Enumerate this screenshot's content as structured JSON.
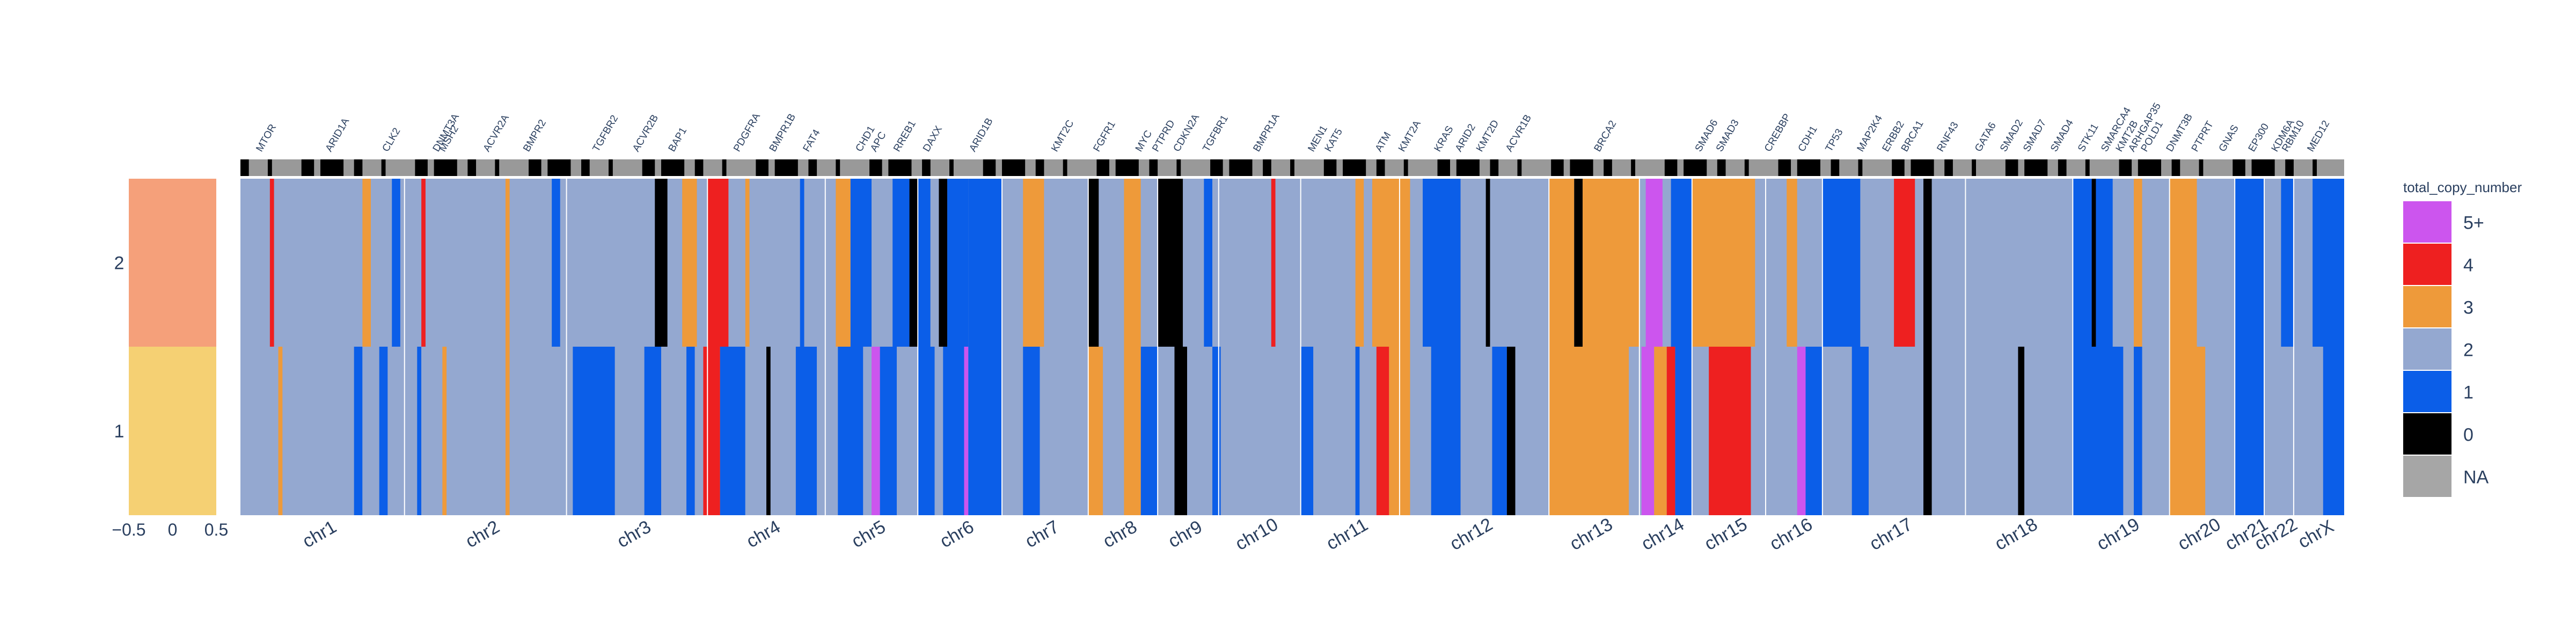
{
  "chart_data": {
    "type": "heatmap",
    "title": "",
    "legend": {
      "title": "total_copy_number",
      "placement": "right",
      "entries": [
        {
          "label": "5+",
          "color": "#cc55ee"
        },
        {
          "label": "4",
          "color": "#ee2020"
        },
        {
          "label": "3",
          "color": "#ee9a3a"
        },
        {
          "label": "2",
          "color": "#94a8d0"
        },
        {
          "label": "1",
          "color": "#0b5ee8"
        },
        {
          "label": "0",
          "color": "#000000"
        },
        {
          "label": "NA",
          "color": "#a6a6a6"
        }
      ]
    },
    "rows": [
      "2",
      "1"
    ],
    "sample_track": {
      "colors": [
        "#f5a07a",
        "#f5d073"
      ],
      "x_ticks": [
        "−0.5",
        "0",
        "0.5"
      ],
      "xlim": [
        -0.5,
        0.5
      ]
    },
    "chromosomes": [
      "chr1",
      "chr2",
      "chr3",
      "chr4",
      "chr5",
      "chr6",
      "chr7",
      "chr8",
      "chr9",
      "chr10",
      "chr11",
      "chr12",
      "chr13",
      "chr14",
      "chr15",
      "chr16",
      "chr17",
      "chr18",
      "chr19",
      "chr20",
      "chr21",
      "chr22",
      "chrX"
    ],
    "chromosome_spans": [
      [
        0,
        0.078
      ],
      [
        0.078,
        0.155
      ],
      [
        0.155,
        0.222
      ],
      [
        0.222,
        0.278
      ],
      [
        0.278,
        0.322
      ],
      [
        0.322,
        0.362
      ],
      [
        0.362,
        0.403
      ],
      [
        0.403,
        0.436
      ],
      [
        0.436,
        0.465
      ],
      [
        0.465,
        0.504
      ],
      [
        0.504,
        0.551
      ],
      [
        0.551,
        0.622
      ],
      [
        0.622,
        0.665
      ],
      [
        0.665,
        0.69
      ],
      [
        0.69,
        0.725
      ],
      [
        0.725,
        0.752
      ],
      [
        0.752,
        0.82
      ],
      [
        0.82,
        0.871
      ],
      [
        0.871,
        0.917
      ],
      [
        0.917,
        0.948
      ],
      [
        0.948,
        0.962
      ],
      [
        0.962,
        0.976
      ],
      [
        0.976,
        1.0
      ]
    ],
    "genes": [
      {
        "name": "MTOR",
        "pos": 0.01
      },
      {
        "name": "ARID1A",
        "pos": 0.043
      },
      {
        "name": "CLK2",
        "pos": 0.07
      },
      {
        "name": "DNMT3A",
        "pos": 0.094
      },
      {
        "name": "MSH2",
        "pos": 0.097
      },
      {
        "name": "ACVR2A",
        "pos": 0.118
      },
      {
        "name": "BMPR2",
        "pos": 0.137
      },
      {
        "name": "TGFBR2",
        "pos": 0.17
      },
      {
        "name": "ACVR2B",
        "pos": 0.189
      },
      {
        "name": "BAP1",
        "pos": 0.206
      },
      {
        "name": "PDGFRA",
        "pos": 0.237
      },
      {
        "name": "BMPR1B",
        "pos": 0.254
      },
      {
        "name": "FAT4",
        "pos": 0.27
      },
      {
        "name": "CHD1",
        "pos": 0.295
      },
      {
        "name": "APC",
        "pos": 0.302
      },
      {
        "name": "RREB1",
        "pos": 0.313
      },
      {
        "name": "DAXX",
        "pos": 0.327
      },
      {
        "name": "ARID1B",
        "pos": 0.349
      },
      {
        "name": "KMT2C",
        "pos": 0.388
      },
      {
        "name": "FGFR1",
        "pos": 0.408
      },
      {
        "name": "MYC",
        "pos": 0.428
      },
      {
        "name": "PTPRD",
        "pos": 0.436
      },
      {
        "name": "CDKN2A",
        "pos": 0.446
      },
      {
        "name": "TGFBR1",
        "pos": 0.46
      },
      {
        "name": "BMPR1A",
        "pos": 0.484
      },
      {
        "name": "MEN1",
        "pos": 0.51
      },
      {
        "name": "KAT5",
        "pos": 0.518
      },
      {
        "name": "ATM",
        "pos": 0.542
      },
      {
        "name": "KMT2A",
        "pos": 0.553
      },
      {
        "name": "KRAS",
        "pos": 0.57
      },
      {
        "name": "ARID2",
        "pos": 0.58
      },
      {
        "name": "KMT2D",
        "pos": 0.59
      },
      {
        "name": "ACVR1B",
        "pos": 0.604
      },
      {
        "name": "BRCA2",
        "pos": 0.646
      },
      {
        "name": "SMAD6",
        "pos": 0.694
      },
      {
        "name": "SMAD3",
        "pos": 0.704
      },
      {
        "name": "CREBBP",
        "pos": 0.727
      },
      {
        "name": "CDH1",
        "pos": 0.743
      },
      {
        "name": "TP53",
        "pos": 0.756
      },
      {
        "name": "MAP2K4",
        "pos": 0.771
      },
      {
        "name": "ERBB2",
        "pos": 0.783
      },
      {
        "name": "BRCA1",
        "pos": 0.792
      },
      {
        "name": "RNF43",
        "pos": 0.809
      },
      {
        "name": "GATA6",
        "pos": 0.827
      },
      {
        "name": "SMAD2",
        "pos": 0.839
      },
      {
        "name": "SMAD7",
        "pos": 0.85
      },
      {
        "name": "SMAD4",
        "pos": 0.863
      },
      {
        "name": "STK11",
        "pos": 0.876
      },
      {
        "name": "SMARCA4",
        "pos": 0.887
      },
      {
        "name": "KMT2B",
        "pos": 0.894
      },
      {
        "name": "ARHGAP35",
        "pos": 0.9
      },
      {
        "name": "POLD1",
        "pos": 0.906
      },
      {
        "name": "DNMT3B",
        "pos": 0.918
      },
      {
        "name": "PTPRT",
        "pos": 0.93
      },
      {
        "name": "GNAS",
        "pos": 0.943
      },
      {
        "name": "EP300",
        "pos": 0.957
      },
      {
        "name": "KDM6A",
        "pos": 0.968
      },
      {
        "name": "RBM10",
        "pos": 0.973
      },
      {
        "name": "MED12",
        "pos": 0.985
      }
    ],
    "segments_row2": [
      [
        0,
        0.014,
        2
      ],
      [
        0.014,
        0.016,
        4
      ],
      [
        0.016,
        0.058,
        2
      ],
      [
        0.058,
        0.062,
        3
      ],
      [
        0.062,
        0.072,
        2
      ],
      [
        0.072,
        0.076,
        1
      ],
      [
        0.076,
        0.086,
        2
      ],
      [
        0.086,
        0.088,
        4
      ],
      [
        0.088,
        0.126,
        2
      ],
      [
        0.126,
        0.128,
        3
      ],
      [
        0.128,
        0.148,
        2
      ],
      [
        0.148,
        0.152,
        1
      ],
      [
        0.152,
        0.197,
        2
      ],
      [
        0.197,
        0.203,
        0
      ],
      [
        0.203,
        0.21,
        2
      ],
      [
        0.21,
        0.217,
        3
      ],
      [
        0.217,
        0.222,
        2
      ],
      [
        0.222,
        0.232,
        4
      ],
      [
        0.232,
        0.24,
        2
      ],
      [
        0.24,
        0.242,
        3
      ],
      [
        0.242,
        0.266,
        2
      ],
      [
        0.266,
        0.268,
        1
      ],
      [
        0.268,
        0.283,
        2
      ],
      [
        0.283,
        0.29,
        3
      ],
      [
        0.29,
        0.3,
        1
      ],
      [
        0.3,
        0.31,
        2
      ],
      [
        0.31,
        0.318,
        1
      ],
      [
        0.318,
        0.322,
        0
      ],
      [
        0.322,
        0.328,
        1
      ],
      [
        0.328,
        0.332,
        2
      ],
      [
        0.332,
        0.336,
        0
      ],
      [
        0.336,
        0.346,
        1
      ],
      [
        0.346,
        0.362,
        1
      ],
      [
        0.362,
        0.372,
        2
      ],
      [
        0.372,
        0.382,
        3
      ],
      [
        0.382,
        0.403,
        2
      ],
      [
        0.403,
        0.408,
        0
      ],
      [
        0.408,
        0.42,
        2
      ],
      [
        0.42,
        0.428,
        3
      ],
      [
        0.428,
        0.436,
        2
      ],
      [
        0.436,
        0.448,
        0
      ],
      [
        0.448,
        0.458,
        2
      ],
      [
        0.458,
        0.462,
        1
      ],
      [
        0.462,
        0.49,
        2
      ],
      [
        0.49,
        0.492,
        4
      ],
      [
        0.492,
        0.504,
        2
      ],
      [
        0.504,
        0.53,
        2
      ],
      [
        0.53,
        0.534,
        3
      ],
      [
        0.534,
        0.538,
        2
      ],
      [
        0.538,
        0.556,
        3
      ],
      [
        0.556,
        0.562,
        2
      ],
      [
        0.562,
        0.58,
        1
      ],
      [
        0.58,
        0.592,
        2
      ],
      [
        0.592,
        0.594,
        0
      ],
      [
        0.594,
        0.622,
        2
      ],
      [
        0.622,
        0.634,
        3
      ],
      [
        0.634,
        0.638,
        0
      ],
      [
        0.638,
        0.665,
        3
      ],
      [
        0.665,
        0.668,
        2
      ],
      [
        0.668,
        0.676,
        5
      ],
      [
        0.676,
        0.68,
        2
      ],
      [
        0.68,
        0.69,
        1
      ],
      [
        0.69,
        0.72,
        3
      ],
      [
        0.72,
        0.725,
        2
      ],
      [
        0.725,
        0.735,
        2
      ],
      [
        0.735,
        0.74,
        3
      ],
      [
        0.74,
        0.752,
        2
      ],
      [
        0.752,
        0.77,
        1
      ],
      [
        0.77,
        0.786,
        2
      ],
      [
        0.786,
        0.796,
        4
      ],
      [
        0.796,
        0.8,
        2
      ],
      [
        0.8,
        0.804,
        0
      ],
      [
        0.804,
        0.82,
        2
      ],
      [
        0.82,
        0.871,
        2
      ],
      [
        0.871,
        0.88,
        1
      ],
      [
        0.88,
        0.882,
        0
      ],
      [
        0.882,
        0.89,
        1
      ],
      [
        0.89,
        0.9,
        2
      ],
      [
        0.9,
        0.904,
        3
      ],
      [
        0.904,
        0.917,
        2
      ],
      [
        0.917,
        0.93,
        3
      ],
      [
        0.93,
        0.948,
        2
      ],
      [
        0.948,
        0.962,
        1
      ],
      [
        0.962,
        0.97,
        2
      ],
      [
        0.97,
        0.976,
        1
      ],
      [
        0.976,
        0.985,
        2
      ],
      [
        0.985,
        1.0,
        1
      ]
    ],
    "segments_row1": [
      [
        0,
        0.018,
        2
      ],
      [
        0.018,
        0.02,
        3
      ],
      [
        0.02,
        0.054,
        2
      ],
      [
        0.054,
        0.058,
        1
      ],
      [
        0.058,
        0.066,
        2
      ],
      [
        0.066,
        0.07,
        1
      ],
      [
        0.07,
        0.084,
        2
      ],
      [
        0.084,
        0.086,
        1
      ],
      [
        0.086,
        0.096,
        2
      ],
      [
        0.096,
        0.098,
        3
      ],
      [
        0.098,
        0.126,
        2
      ],
      [
        0.126,
        0.128,
        3
      ],
      [
        0.128,
        0.158,
        2
      ],
      [
        0.158,
        0.178,
        1
      ],
      [
        0.178,
        0.192,
        2
      ],
      [
        0.192,
        0.2,
        1
      ],
      [
        0.2,
        0.212,
        2
      ],
      [
        0.212,
        0.216,
        1
      ],
      [
        0.216,
        0.22,
        2
      ],
      [
        0.22,
        0.228,
        4
      ],
      [
        0.228,
        0.24,
        1
      ],
      [
        0.24,
        0.25,
        2
      ],
      [
        0.25,
        0.252,
        0
      ],
      [
        0.252,
        0.264,
        2
      ],
      [
        0.264,
        0.274,
        1
      ],
      [
        0.274,
        0.284,
        2
      ],
      [
        0.284,
        0.296,
        1
      ],
      [
        0.296,
        0.3,
        2
      ],
      [
        0.3,
        0.304,
        5
      ],
      [
        0.304,
        0.312,
        1
      ],
      [
        0.312,
        0.322,
        2
      ],
      [
        0.322,
        0.33,
        1
      ],
      [
        0.33,
        0.334,
        2
      ],
      [
        0.334,
        0.344,
        1
      ],
      [
        0.344,
        0.346,
        5
      ],
      [
        0.346,
        0.362,
        1
      ],
      [
        0.362,
        0.372,
        2
      ],
      [
        0.372,
        0.38,
        1
      ],
      [
        0.38,
        0.403,
        2
      ],
      [
        0.403,
        0.41,
        3
      ],
      [
        0.41,
        0.42,
        2
      ],
      [
        0.42,
        0.428,
        3
      ],
      [
        0.428,
        0.436,
        1
      ],
      [
        0.436,
        0.444,
        2
      ],
      [
        0.444,
        0.45,
        0
      ],
      [
        0.45,
        0.462,
        2
      ],
      [
        0.462,
        0.466,
        1
      ],
      [
        0.466,
        0.504,
        2
      ],
      [
        0.504,
        0.51,
        1
      ],
      [
        0.51,
        0.53,
        2
      ],
      [
        0.53,
        0.532,
        1
      ],
      [
        0.532,
        0.54,
        2
      ],
      [
        0.54,
        0.546,
        4
      ],
      [
        0.546,
        0.556,
        3
      ],
      [
        0.556,
        0.566,
        2
      ],
      [
        0.566,
        0.58,
        1
      ],
      [
        0.58,
        0.595,
        2
      ],
      [
        0.595,
        0.602,
        1
      ],
      [
        0.602,
        0.606,
        0
      ],
      [
        0.606,
        0.622,
        2
      ],
      [
        0.622,
        0.66,
        3
      ],
      [
        0.66,
        0.666,
        2
      ],
      [
        0.666,
        0.672,
        5
      ],
      [
        0.672,
        0.678,
        3
      ],
      [
        0.678,
        0.682,
        4
      ],
      [
        0.682,
        0.69,
        1
      ],
      [
        0.69,
        0.698,
        2
      ],
      [
        0.698,
        0.718,
        4
      ],
      [
        0.718,
        0.725,
        2
      ],
      [
        0.725,
        0.74,
        2
      ],
      [
        0.74,
        0.744,
        5
      ],
      [
        0.744,
        0.752,
        1
      ],
      [
        0.752,
        0.766,
        2
      ],
      [
        0.766,
        0.774,
        1
      ],
      [
        0.774,
        0.8,
        2
      ],
      [
        0.8,
        0.804,
        0
      ],
      [
        0.804,
        0.82,
        2
      ],
      [
        0.82,
        0.845,
        2
      ],
      [
        0.845,
        0.848,
        0
      ],
      [
        0.848,
        0.871,
        2
      ],
      [
        0.871,
        0.895,
        1
      ],
      [
        0.895,
        0.9,
        2
      ],
      [
        0.9,
        0.904,
        1
      ],
      [
        0.904,
        0.917,
        2
      ],
      [
        0.917,
        0.934,
        3
      ],
      [
        0.934,
        0.948,
        2
      ],
      [
        0.948,
        0.962,
        1
      ],
      [
        0.962,
        0.976,
        2
      ],
      [
        0.976,
        0.99,
        2
      ],
      [
        0.99,
        1.0,
        1
      ]
    ]
  }
}
